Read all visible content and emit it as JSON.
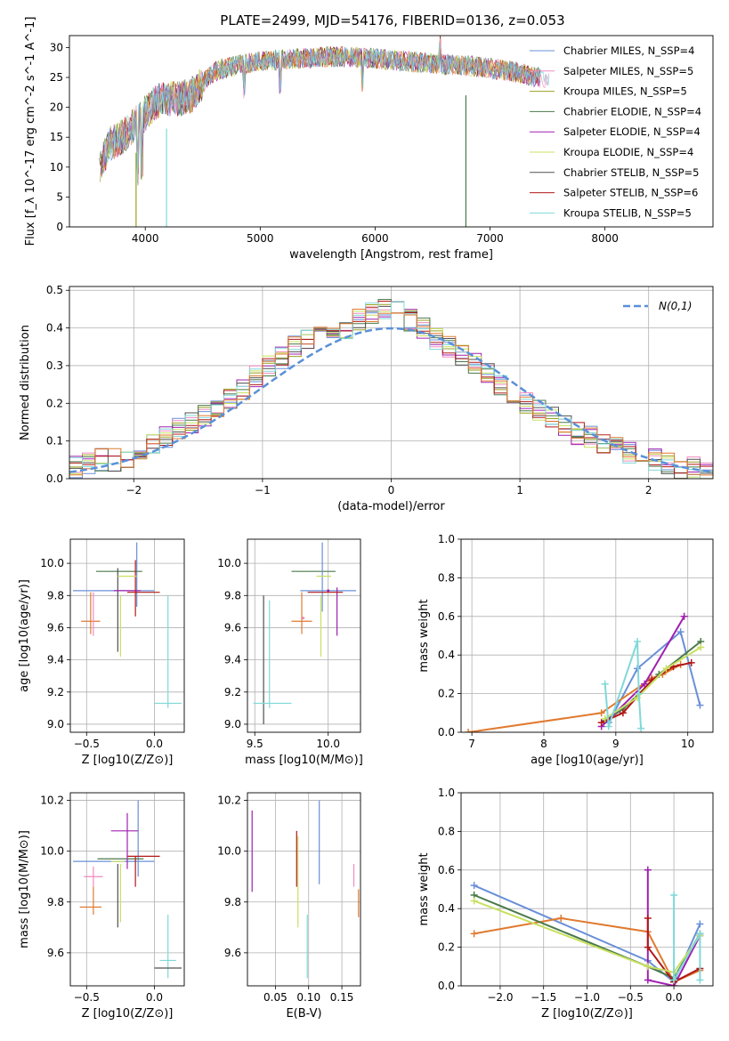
{
  "figure_title": "PLATE=2499, MJD=54176, FIBERID=0136, z=0.053",
  "colors": [
    "#6a8fd8",
    "#f08ac0",
    "#9aa020",
    "#4a7a4a",
    "#a020b0",
    "#c8e060",
    "#505050",
    "#b01818",
    "#80d8d8",
    "#e07a30"
  ],
  "legend_spectrum": [
    {
      "label": "Chabrier MILES, N_SSP=4",
      "color": "#6a8fd8"
    },
    {
      "label": "Salpeter MILES, N_SSP=5",
      "color": "#f08ac0"
    },
    {
      "label": "Kroupa MILES, N_SSP=5",
      "color": "#9aa020"
    },
    {
      "label": "Chabrier ELODIE, N_SSP=4",
      "color": "#4a7a4a"
    },
    {
      "label": "Salpeter ELODIE, N_SSP=4",
      "color": "#a020b0"
    },
    {
      "label": "Kroupa ELODIE, N_SSP=4",
      "color": "#c8e060"
    },
    {
      "label": "Chabrier STELIB, N_SSP=5",
      "color": "#505050"
    },
    {
      "label": "Salpeter STELIB, N_SSP=6",
      "color": "#b01818"
    },
    {
      "label": "Kroupa STELIB, N_SSP=5",
      "color": "#80d8d8"
    }
  ],
  "chart_data": [
    {
      "id": "spectrum",
      "type": "line",
      "title": "PLATE=2499, MJD=54176, FIBERID=0136, z=0.053",
      "xlabel": "wavelength [Angstrom, rest frame]",
      "ylabel": "Flux [f_λ 10^-17 erg cm^-2 s^-1 A^-1]",
      "xlim": [
        3340,
        8940
      ],
      "ylim": [
        0,
        32
      ],
      "xticks": [
        4000,
        5000,
        6000,
        7000,
        8000
      ],
      "yticks": [
        0,
        5,
        10,
        15,
        20,
        25,
        30
      ],
      "envelope_x": [
        3600,
        3700,
        3800,
        3900,
        4000,
        4100,
        4200,
        4300,
        4400,
        4500,
        4600,
        4800,
        5000,
        5200,
        5400,
        5600,
        5800,
        6000,
        6200,
        6400,
        6600,
        6800,
        7000,
        7200,
        7400
      ],
      "envelope_y": [
        10,
        14,
        15,
        17,
        19,
        21,
        21.5,
        21.5,
        22,
        24,
        26,
        27,
        27.8,
        28,
        28.2,
        28.5,
        28.4,
        28.2,
        27.8,
        27.5,
        27.2,
        27,
        26.5,
        26,
        25
      ],
      "legend_location": "right"
    },
    {
      "id": "residual_histogram",
      "type": "line",
      "xlabel": "(data-model)/error",
      "ylabel": "Normed distribution",
      "xlim": [
        -2.5,
        2.5
      ],
      "ylim": [
        0,
        0.51
      ],
      "xticks": [
        -2,
        -1,
        0,
        1,
        2
      ],
      "yticks": [
        0.0,
        0.1,
        0.2,
        0.3,
        0.4,
        0.5
      ],
      "reference_curve": "N(0,1)",
      "bin_centers": [
        -2.45,
        -2.35,
        -2.25,
        -2.15,
        -2.05,
        -1.95,
        -1.85,
        -1.75,
        -1.65,
        -1.55,
        -1.45,
        -1.35,
        -1.25,
        -1.15,
        -1.05,
        -0.95,
        -0.85,
        -0.75,
        -0.65,
        -0.55,
        -0.45,
        -0.35,
        -0.25,
        -0.15,
        -0.05,
        0.05,
        0.15,
        0.25,
        0.35,
        0.45,
        0.55,
        0.65,
        0.75,
        0.85,
        0.95,
        1.05,
        1.15,
        1.25,
        1.35,
        1.45,
        1.55,
        1.65,
        1.75,
        1.85,
        1.95,
        2.05,
        2.15,
        2.25,
        2.35,
        2.45
      ],
      "histogram_values": [
        0.03,
        0.04,
        0.05,
        0.05,
        0.06,
        0.07,
        0.09,
        0.11,
        0.13,
        0.15,
        0.17,
        0.19,
        0.21,
        0.24,
        0.27,
        0.3,
        0.32,
        0.35,
        0.37,
        0.38,
        0.39,
        0.4,
        0.42,
        0.44,
        0.45,
        0.44,
        0.42,
        0.4,
        0.37,
        0.35,
        0.33,
        0.31,
        0.28,
        0.25,
        0.22,
        0.2,
        0.18,
        0.16,
        0.14,
        0.12,
        0.11,
        0.09,
        0.08,
        0.07,
        0.06,
        0.05,
        0.04,
        0.03,
        0.03,
        0.02
      ],
      "legend_location": "upper right"
    },
    {
      "id": "z_vs_age",
      "type": "scatter",
      "xlabel": "Z [log10(Z/Z⊙)]",
      "ylabel": "age [log10(age/yr)]",
      "xlim": [
        -0.62,
        0.22
      ],
      "ylim": [
        8.95,
        10.15
      ],
      "xticks": [
        -0.5,
        0.0
      ],
      "yticks": [
        9.0,
        9.2,
        9.4,
        9.6,
        9.8,
        10.0
      ],
      "points": [
        {
          "x": -0.3,
          "y": 9.83,
          "xerr": 0.3,
          "yerr_lo": 0.0,
          "yerr_hi": 0.0,
          "c": 0
        },
        {
          "x": -0.13,
          "y": 9.93,
          "xerr": 0.0,
          "yerr_lo": 0.2,
          "yerr_hi": 0.2,
          "c": 0
        },
        {
          "x": -0.47,
          "y": 9.64,
          "xerr": 0.07,
          "yerr_lo": 0.08,
          "yerr_hi": 0.18,
          "c": 9
        },
        {
          "x": -0.45,
          "y": 9.62,
          "xerr": 0.0,
          "yerr_lo": 0.07,
          "yerr_hi": 0.2,
          "c": 1
        },
        {
          "x": -0.26,
          "y": 9.95,
          "xerr": 0.17,
          "yerr_lo": 0.0,
          "yerr_hi": 0.0,
          "c": 3
        },
        {
          "x": -0.27,
          "y": 9.7,
          "xerr": 0.0,
          "yerr_lo": 0.25,
          "yerr_hi": 0.27,
          "c": 6
        },
        {
          "x": -0.2,
          "y": 9.83,
          "xerr": 0.1,
          "yerr_lo": 0.0,
          "yerr_hi": 0.0,
          "c": 4
        },
        {
          "x": -0.14,
          "y": 9.85,
          "xerr": 0.0,
          "yerr_lo": 0.18,
          "yerr_hi": 0.17,
          "c": 7
        },
        {
          "x": -0.08,
          "y": 9.82,
          "xerr": 0.12,
          "yerr_lo": 0.0,
          "yerr_hi": 0.0,
          "c": 7
        },
        {
          "x": -0.2,
          "y": 9.92,
          "xerr": 0.07,
          "yerr_lo": 0.0,
          "yerr_hi": 0.0,
          "c": 5
        },
        {
          "x": -0.25,
          "y": 9.6,
          "xerr": 0.0,
          "yerr_lo": 0.18,
          "yerr_hi": 0.2,
          "c": 5
        },
        {
          "x": 0.1,
          "y": 9.13,
          "xerr": 0.1,
          "yerr_lo": 0.0,
          "yerr_hi": 0.0,
          "c": 8
        },
        {
          "x": 0.1,
          "y": 9.45,
          "xerr": 0.0,
          "yerr_lo": 0.35,
          "yerr_hi": 0.35,
          "c": 8
        }
      ]
    },
    {
      "id": "mass_vs_age",
      "type": "scatter",
      "xlabel": "mass [log10(M/M⊙)]",
      "ylabel": "",
      "xlim": [
        9.45,
        10.22
      ],
      "ylim": [
        8.95,
        10.15
      ],
      "xticks": [
        9.5,
        10.0
      ],
      "yticks": [
        9.0,
        9.2,
        9.4,
        9.6,
        9.8,
        10.0
      ],
      "points": [
        {
          "x": 9.9,
          "y": 9.95,
          "xerr": 0.15,
          "yerr_lo": 0.0,
          "yerr_hi": 0.0,
          "c": 3
        },
        {
          "x": 9.96,
          "y": 9.9,
          "xerr": 0.0,
          "yerr_lo": 0.2,
          "yerr_hi": 0.23,
          "c": 0
        },
        {
          "x": 10.0,
          "y": 9.83,
          "xerr": 0.19,
          "yerr_lo": 0.0,
          "yerr_hi": 0.0,
          "c": 0
        },
        {
          "x": 10.0,
          "y": 9.83,
          "xerr": 0.0,
          "yerr_lo": 0.0,
          "yerr_hi": 0.0,
          "c": 4
        },
        {
          "x": 10.06,
          "y": 9.75,
          "xerr": 0.0,
          "yerr_lo": 0.2,
          "yerr_hi": 0.1,
          "c": 4
        },
        {
          "x": 9.98,
          "y": 9.82,
          "xerr": 0.12,
          "yerr_lo": 0.0,
          "yerr_hi": 0.0,
          "c": 7
        },
        {
          "x": 9.97,
          "y": 9.92,
          "xerr": 0.05,
          "yerr_lo": 0.0,
          "yerr_hi": 0.0,
          "c": 5
        },
        {
          "x": 9.95,
          "y": 9.6,
          "xerr": 0.0,
          "yerr_lo": 0.18,
          "yerr_hi": 0.2,
          "c": 5
        },
        {
          "x": 9.82,
          "y": 9.64,
          "xerr": 0.07,
          "yerr_lo": 0.08,
          "yerr_hi": 0.18,
          "c": 9
        },
        {
          "x": 9.83,
          "y": 9.66,
          "xerr": 0.0,
          "yerr_lo": 0.0,
          "yerr_hi": 0.0,
          "c": 1
        },
        {
          "x": 9.56,
          "y": 9.4,
          "xerr": 0.0,
          "yerr_lo": 0.4,
          "yerr_hi": 0.4,
          "c": 6
        },
        {
          "x": 9.62,
          "y": 9.13,
          "xerr": 0.13,
          "yerr_lo": 0.0,
          "yerr_hi": 0.0,
          "c": 8
        },
        {
          "x": 9.6,
          "y": 9.45,
          "xerr": 0.0,
          "yerr_lo": 0.35,
          "yerr_hi": 0.32,
          "c": 8
        }
      ]
    },
    {
      "id": "age_vs_weight",
      "type": "line",
      "xlabel": "age [log10(age/yr)]",
      "ylabel": "mass weight",
      "xlim": [
        6.85,
        10.35
      ],
      "ylim": [
        0.0,
        1.0
      ],
      "xticks": [
        7,
        8,
        9,
        10
      ],
      "yticks": [
        0.0,
        0.2,
        0.4,
        0.6,
        0.8,
        1.0
      ],
      "series": [
        {
          "c": 0,
          "x": [
            8.9,
            9.3,
            9.9,
            10.17
          ],
          "y": [
            0.05,
            0.33,
            0.52,
            0.14
          ]
        },
        {
          "c": 9,
          "x": [
            6.95,
            8.8,
            9.5,
            9.65,
            9.9
          ],
          "y": [
            0.0,
            0.1,
            0.28,
            0.3,
            0.35
          ]
        },
        {
          "c": 3,
          "x": [
            8.85,
            9.1,
            9.6,
            10.18
          ],
          "y": [
            0.06,
            0.12,
            0.3,
            0.47
          ]
        },
        {
          "c": 4,
          "x": [
            8.8,
            9.4,
            9.95
          ],
          "y": [
            0.03,
            0.25,
            0.6
          ]
        },
        {
          "c": 7,
          "x": [
            8.8,
            9.1,
            9.5,
            9.8,
            10.05
          ],
          "y": [
            0.05,
            0.1,
            0.27,
            0.34,
            0.36
          ]
        },
        {
          "c": 5,
          "x": [
            8.85,
            9.3,
            9.7,
            10.18
          ],
          "y": [
            0.07,
            0.18,
            0.33,
            0.44
          ]
        },
        {
          "c": 8,
          "x": [
            8.85,
            8.9,
            9.3,
            9.32,
            9.35
          ],
          "y": [
            0.25,
            0.03,
            0.47,
            0.2,
            0.02
          ]
        }
      ]
    },
    {
      "id": "z_vs_mass",
      "type": "scatter",
      "xlabel": "Z [log10(Z/Z⊙)]",
      "ylabel": "mass [log10(M/M⊙)]",
      "xlim": [
        -0.62,
        0.22
      ],
      "ylim": [
        9.47,
        10.23
      ],
      "xticks": [
        -0.5,
        0.0
      ],
      "yticks": [
        9.6,
        9.8,
        10.0,
        10.2
      ],
      "points": [
        {
          "x": -0.3,
          "y": 9.96,
          "xerr": 0.3,
          "yerr_lo": 0.0,
          "yerr_hi": 0.0,
          "c": 0
        },
        {
          "x": -0.12,
          "y": 10.05,
          "xerr": 0.0,
          "yerr_lo": 0.15,
          "yerr_hi": 0.15,
          "c": 0
        },
        {
          "x": -0.45,
          "y": 9.9,
          "xerr": 0.07,
          "yerr_lo": 0.04,
          "yerr_hi": 0.04,
          "c": 1
        },
        {
          "x": -0.47,
          "y": 9.78,
          "xerr": 0.08,
          "yerr_lo": 0.0,
          "yerr_hi": 0.0,
          "c": 9
        },
        {
          "x": -0.45,
          "y": 9.8,
          "xerr": 0.0,
          "yerr_lo": 0.05,
          "yerr_hi": 0.06,
          "c": 9
        },
        {
          "x": -0.25,
          "y": 9.97,
          "xerr": 0.17,
          "yerr_lo": 0.0,
          "yerr_hi": 0.0,
          "c": 3
        },
        {
          "x": -0.27,
          "y": 9.8,
          "xerr": 0.0,
          "yerr_lo": 0.1,
          "yerr_hi": 0.15,
          "c": 6
        },
        {
          "x": -0.22,
          "y": 10.08,
          "xerr": 0.1,
          "yerr_lo": 0.0,
          "yerr_hi": 0.0,
          "c": 4
        },
        {
          "x": -0.2,
          "y": 10.08,
          "xerr": 0.0,
          "yerr_lo": 0.15,
          "yerr_hi": 0.07,
          "c": 4
        },
        {
          "x": -0.08,
          "y": 9.98,
          "xerr": 0.12,
          "yerr_lo": 0.0,
          "yerr_hi": 0.0,
          "c": 7
        },
        {
          "x": -0.14,
          "y": 9.98,
          "xerr": 0.0,
          "yerr_lo": 0.12,
          "yerr_hi": 0.0,
          "c": 7
        },
        {
          "x": -0.27,
          "y": 9.96,
          "xerr": 0.05,
          "yerr_lo": 0.0,
          "yerr_hi": 0.0,
          "c": 5
        },
        {
          "x": -0.25,
          "y": 9.85,
          "xerr": 0.0,
          "yerr_lo": 0.13,
          "yerr_hi": 0.1,
          "c": 5
        },
        {
          "x": 0.1,
          "y": 9.57,
          "xerr": 0.06,
          "yerr_lo": 0.0,
          "yerr_hi": 0.0,
          "c": 8
        },
        {
          "x": 0.1,
          "y": 9.6,
          "xerr": 0.0,
          "yerr_lo": 0.1,
          "yerr_hi": 0.15,
          "c": 8
        },
        {
          "x": 0.1,
          "y": 9.54,
          "xerr": 0.1,
          "yerr_lo": 0.0,
          "yerr_hi": 0.0,
          "c": 6
        }
      ]
    },
    {
      "id": "ebv_vs_mass",
      "type": "scatter",
      "xlabel": "E(B-V)",
      "ylabel": "",
      "xlim": [
        0.008,
        0.178
      ],
      "ylim": [
        9.47,
        10.23
      ],
      "xticks": [
        0.05,
        0.1,
        0.15
      ],
      "yticks": [
        9.6,
        9.8,
        10.0,
        10.2
      ],
      "points": [
        {
          "x": 0.015,
          "y": 10.0,
          "xerr": 0.0,
          "yerr_lo": 0.16,
          "yerr_hi": 0.16,
          "c": 4
        },
        {
          "x": 0.082,
          "y": 9.98,
          "xerr": 0.0,
          "yerr_lo": 0.12,
          "yerr_hi": 0.1,
          "c": 7
        },
        {
          "x": 0.084,
          "y": 9.88,
          "xerr": 0.0,
          "yerr_lo": 0.18,
          "yerr_hi": 0.18,
          "c": 5
        },
        {
          "x": 0.098,
          "y": 9.6,
          "xerr": 0.0,
          "yerr_lo": 0.1,
          "yerr_hi": 0.15,
          "c": 8
        },
        {
          "x": 0.116,
          "y": 10.04,
          "xerr": 0.0,
          "yerr_lo": 0.17,
          "yerr_hi": 0.16,
          "c": 0
        },
        {
          "x": 0.168,
          "y": 9.9,
          "xerr": 0.0,
          "yerr_lo": 0.04,
          "yerr_hi": 0.05,
          "c": 1
        },
        {
          "x": 0.175,
          "y": 9.8,
          "xerr": 0.0,
          "yerr_lo": 0.06,
          "yerr_hi": 0.05,
          "c": 9
        }
      ]
    },
    {
      "id": "z_vs_weight",
      "type": "line",
      "xlabel": "Z [log10(Z/Z⊙)]",
      "ylabel": "mass weight",
      "xlim": [
        -2.45,
        0.45
      ],
      "ylim": [
        0.0,
        1.0
      ],
      "xticks": [
        -2.0,
        -1.5,
        -1.0,
        -0.5,
        0.0
      ],
      "yticks": [
        0.0,
        0.2,
        0.4,
        0.6,
        0.8,
        1.0
      ],
      "series": [
        {
          "c": 0,
          "x": [
            -2.3,
            -0.3,
            0.0,
            0.3
          ],
          "y": [
            0.52,
            0.13,
            0.02,
            0.32
          ]
        },
        {
          "c": 9,
          "x": [
            -2.3,
            -1.3,
            -0.3,
            0.0,
            0.3
          ],
          "y": [
            0.27,
            0.35,
            0.28,
            0.02,
            0.08
          ]
        },
        {
          "c": 3,
          "x": [
            -2.3,
            -0.3,
            0.0,
            0.3
          ],
          "y": [
            0.47,
            0.1,
            0.04,
            0.27
          ]
        },
        {
          "c": 4,
          "x": [
            -0.3,
            -0.3,
            0.0,
            0.3
          ],
          "y": [
            0.6,
            0.03,
            0.0,
            0.26
          ]
        },
        {
          "c": 7,
          "x": [
            -0.3,
            -0.3,
            0.0,
            0.3
          ],
          "y": [
            0.35,
            0.2,
            0.02,
            0.09
          ]
        },
        {
          "c": 5,
          "x": [
            -2.3,
            -0.3,
            0.0,
            0.3
          ],
          "y": [
            0.44,
            0.1,
            0.07,
            0.26
          ]
        },
        {
          "c": 8,
          "x": [
            0.0,
            0.0,
            0.3,
            0.3
          ],
          "y": [
            0.47,
            0.03,
            0.27,
            0.03
          ]
        }
      ]
    }
  ]
}
